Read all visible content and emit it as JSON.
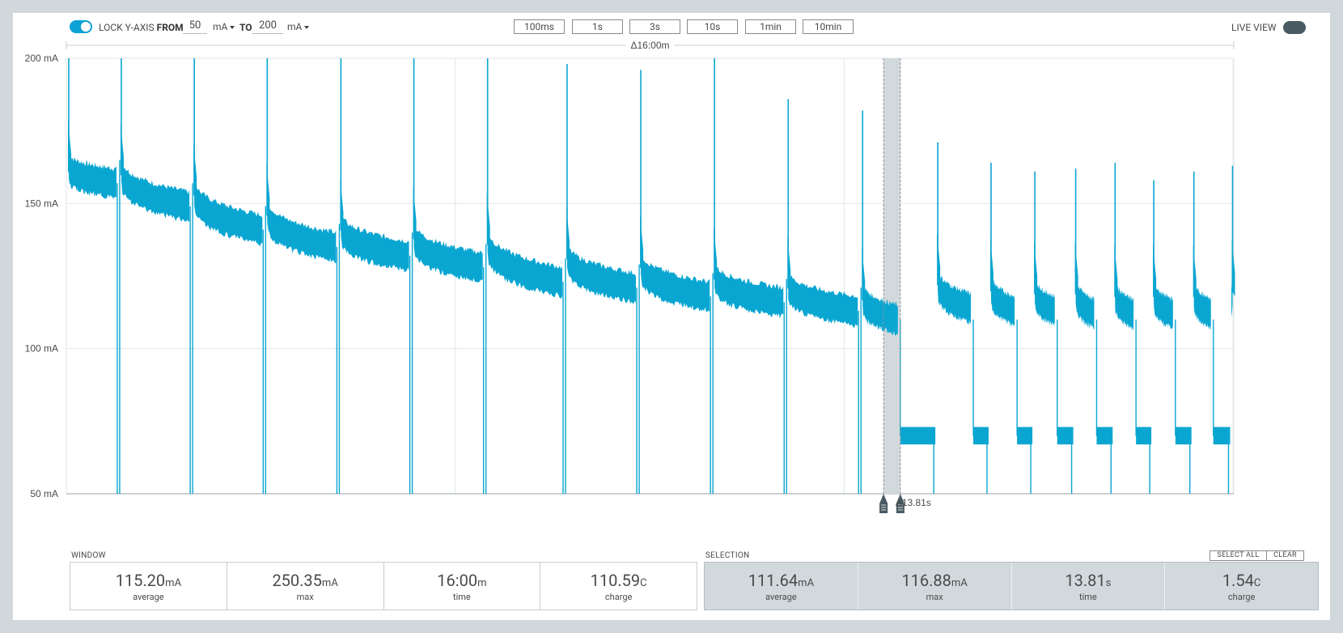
{
  "toolbar": {
    "lock_label": "LOCK Y-AXIS",
    "from_label": "FROM",
    "from_value": "50",
    "from_unit": "mA",
    "to_label": "TO",
    "to_value": "200",
    "to_unit": "mA",
    "lock_enabled": true,
    "zoom_buttons": [
      "100ms",
      "1s",
      "3s",
      "10s",
      "1min",
      "10min"
    ],
    "live_view_label": "LIVE VIEW",
    "live_view_enabled": false
  },
  "chart": {
    "window_span_label": "Δ16:00m",
    "selection_delta_label": "Δ13.81s",
    "colors": {
      "trace": "#0aa6d2",
      "grid": "#e3e6e8",
      "selection": "#d2d9dd",
      "cursor": "#4a5a63"
    }
  },
  "chart_data": {
    "type": "line",
    "series": [
      {
        "name": "Current",
        "unit": "mA"
      }
    ],
    "ytick_labels": [
      "200 mA",
      "150 mA",
      "100 mA",
      "50 mA"
    ],
    "ylim": [
      50,
      200
    ],
    "xlim_minutes": [
      0,
      16
    ],
    "grid": true,
    "selection_minutes": [
      11.2,
      11.43
    ],
    "segments": [
      {
        "start": 0,
        "end": 0.72,
        "level_start": 163,
        "level_end": 157,
        "spike": 200,
        "drop_min": 50
      },
      {
        "start": 0.72,
        "end": 1.72,
        "level_start": 162,
        "level_end": 149,
        "spike": 200,
        "drop_min": 50
      },
      {
        "start": 1.72,
        "end": 2.72,
        "level_start": 155,
        "level_end": 141,
        "spike": 200,
        "drop_min": 50
      },
      {
        "start": 2.72,
        "end": 3.73,
        "level_start": 148,
        "level_end": 135,
        "spike": 200,
        "drop_min": 50
      },
      {
        "start": 3.73,
        "end": 4.73,
        "level_start": 143,
        "level_end": 132,
        "spike": 200,
        "drop_min": 50
      },
      {
        "start": 4.73,
        "end": 5.74,
        "level_start": 140,
        "level_end": 128,
        "spike": 200,
        "drop_min": 50
      },
      {
        "start": 5.74,
        "end": 6.83,
        "level_start": 138,
        "level_end": 123,
        "spike": 200,
        "drop_min": 50
      },
      {
        "start": 6.83,
        "end": 7.84,
        "level_start": 133,
        "level_end": 121,
        "spike": 198,
        "drop_min": 50
      },
      {
        "start": 7.84,
        "end": 8.85,
        "level_start": 130,
        "level_end": 118,
        "spike": 196,
        "drop_min": 50
      },
      {
        "start": 8.85,
        "end": 9.86,
        "level_start": 126,
        "level_end": 116,
        "spike": 200,
        "drop_min": 50
      },
      {
        "start": 9.86,
        "end": 10.88,
        "level_start": 123,
        "level_end": 113,
        "spike": 186,
        "drop_min": 50
      },
      {
        "start": 10.88,
        "end": 11.43,
        "level_start": 119,
        "level_end": 110,
        "spike": 182,
        "drop_min": 50
      }
    ],
    "bursts": [
      {
        "idle_start": 11.43,
        "idle_end": 11.91,
        "idle_level": 70,
        "start": 11.91,
        "end": 12.43,
        "level_start": 124,
        "level_end": 114,
        "spike": 171
      },
      {
        "idle_start": 12.43,
        "idle_end": 12.64,
        "idle_level": 70,
        "start": 12.64,
        "end": 13.03,
        "level_start": 122,
        "level_end": 113,
        "spike": 164
      },
      {
        "idle_start": 13.03,
        "idle_end": 13.24,
        "idle_level": 70,
        "start": 13.24,
        "end": 13.58,
        "level_start": 121,
        "level_end": 113,
        "spike": 161
      },
      {
        "idle_start": 13.58,
        "idle_end": 13.8,
        "idle_level": 70,
        "start": 13.8,
        "end": 14.12,
        "level_start": 121,
        "level_end": 112,
        "spike": 162
      },
      {
        "idle_start": 14.12,
        "idle_end": 14.34,
        "idle_level": 70,
        "start": 14.34,
        "end": 14.66,
        "level_start": 120,
        "level_end": 112,
        "spike": 164
      },
      {
        "idle_start": 14.66,
        "idle_end": 14.87,
        "idle_level": 70,
        "start": 14.87,
        "end": 15.2,
        "level_start": 120,
        "level_end": 112,
        "spike": 158
      },
      {
        "idle_start": 15.2,
        "idle_end": 15.42,
        "idle_level": 70,
        "start": 15.42,
        "end": 15.72,
        "level_start": 120,
        "level_end": 112,
        "spike": 161
      },
      {
        "idle_start": 15.72,
        "idle_end": 15.95,
        "idle_level": 70,
        "start": 15.95,
        "end": 16.0,
        "level_start": 122,
        "level_end": 116,
        "spike": 163
      }
    ]
  },
  "window_stats": {
    "label": "WINDOW",
    "items": [
      {
        "value": "115.20",
        "unit": "mA",
        "caption": "average"
      },
      {
        "value": "250.35",
        "unit": "mA",
        "caption": "max"
      },
      {
        "value": "16:00",
        "unit": "m",
        "caption": "time"
      },
      {
        "value": "110.59",
        "unit": "C",
        "caption": "charge"
      }
    ]
  },
  "selection_stats": {
    "label": "SELECTION",
    "select_all_label": "SELECT ALL",
    "clear_label": "CLEAR",
    "items": [
      {
        "value": "111.64",
        "unit": "mA",
        "caption": "average"
      },
      {
        "value": "116.88",
        "unit": "mA",
        "caption": "max"
      },
      {
        "value": "13.81",
        "unit": "s",
        "caption": "time"
      },
      {
        "value": "1.54",
        "unit": "C",
        "caption": "charge"
      }
    ]
  }
}
